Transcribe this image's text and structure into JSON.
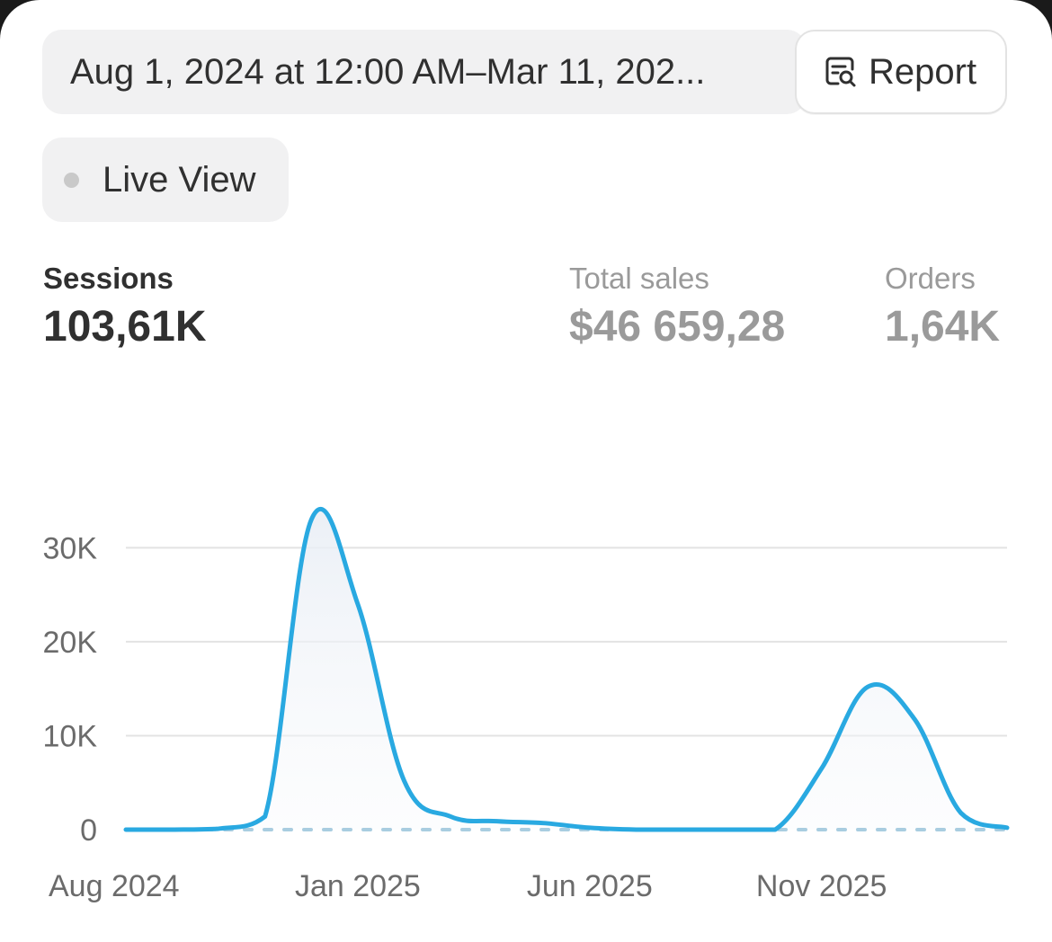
{
  "header": {
    "date_range": "Aug 1, 2024 at 12:00 AM–Mar 11, 202...",
    "report_label": "Report",
    "live_view_label": "Live View"
  },
  "metrics": [
    {
      "label": "Sessions",
      "value": "103,61K",
      "active": true
    },
    {
      "label": "Total sales",
      "value": "$46 659,28",
      "active": false
    },
    {
      "label": "Orders",
      "value": "1,64K",
      "active": false
    }
  ],
  "colors": {
    "line": "#29a9e1",
    "baseline": "#a9cde0",
    "grid": "#e3e3e3"
  },
  "chart_data": {
    "type": "line",
    "title": "",
    "xlabel": "",
    "ylabel": "",
    "ylim": [
      0,
      33000
    ],
    "y_ticks": [
      0,
      10000,
      20000,
      30000
    ],
    "y_tick_labels": [
      "0",
      "10K",
      "20K",
      "30K"
    ],
    "x_ticks": [
      "2024-08",
      "2025-01",
      "2025-06",
      "2025-11"
    ],
    "x_tick_labels": [
      "Aug 2024",
      "Jan 2025",
      "Jun 2025",
      "Nov 2025"
    ],
    "grid": true,
    "series": [
      {
        "name": "",
        "x": [
          "2024-08",
          "2024-09",
          "2024-10",
          "2024-11",
          "2024-12",
          "2025-01",
          "2025-02",
          "2025-03",
          "2025-04",
          "2025-05",
          "2025-06",
          "2025-07",
          "2025-08",
          "2025-09",
          "2025-10",
          "2025-11",
          "2025-12",
          "2026-01",
          "2026-02",
          "2026-03"
        ],
        "values": [
          0,
          0,
          100,
          1400,
          33000,
          24000,
          5200,
          1400,
          900,
          700,
          200,
          0,
          0,
          0,
          0,
          6500,
          15200,
          11800,
          1800,
          200
        ]
      },
      {
        "name": "",
        "style": "dashed",
        "x": [
          "2024-08",
          "2026-03"
        ],
        "values": [
          0,
          0
        ]
      }
    ]
  }
}
